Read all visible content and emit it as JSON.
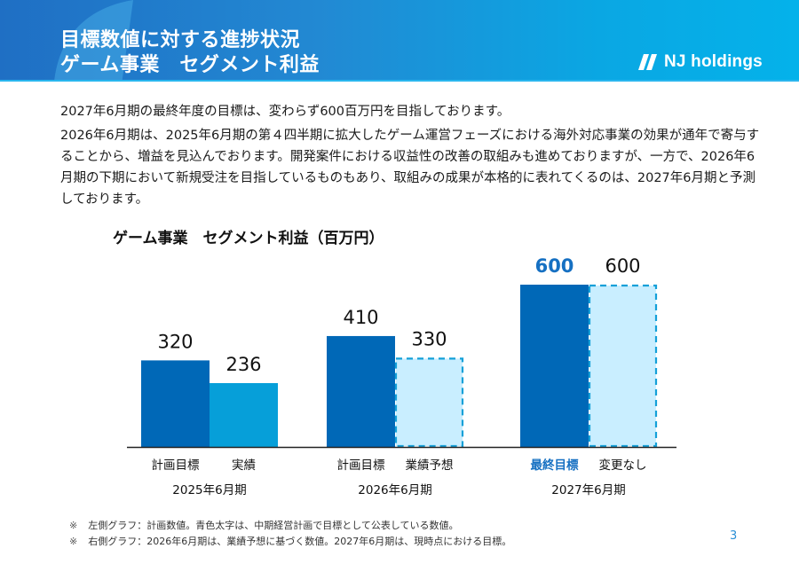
{
  "header": {
    "title_line1": "目標数値に対する進捗状況",
    "title_line2": "ゲーム事業　セグメント利益",
    "logo_text": "NJ holdings",
    "logo_icon": "double-slash-logo-mark"
  },
  "body": {
    "paragraph1": "2027年6月期の最終年度の目標は、変わらず600百万円を目指しております。",
    "paragraph2": "2026年6月期は、2025年6月期の第４四半期に拡大したゲーム運営フェーズにおける海外対応事業の効果が通年で寄与することから、増益を見込んでおります。開発案件における収益性の改善の取組みも進めておりますが、一方で、2026年6月期の下期において新規受注を目指しているものもあり、取組みの成果が本格的に表れてくるのは、2027年6月期と予測しております。"
  },
  "chart_data": {
    "type": "bar",
    "title": "ゲーム事業　セグメント利益（百万円）",
    "xlabel": "",
    "ylabel": "",
    "ylim": [
      0,
      600
    ],
    "grid": false,
    "legend": "none",
    "categories": [
      "2025年6月期",
      "2026年6月期",
      "2027年6月期"
    ],
    "series": [
      {
        "name": "left",
        "style": "solid-dark",
        "labels": [
          "計画目標",
          "計画目標",
          "最終目標"
        ],
        "values": [
          320,
          410,
          600
        ],
        "label_highlight": [
          false,
          false,
          true
        ]
      },
      {
        "name": "right",
        "style": [
          "solid-light",
          "dashed",
          "dashed"
        ],
        "labels": [
          "実績",
          "業績予想",
          "変更なし"
        ],
        "values": [
          236,
          330,
          600
        ],
        "label_highlight": [
          false,
          false,
          false
        ]
      }
    ],
    "colors": {
      "plan": "#0068b7",
      "actual": "#069fd9",
      "forecast_fill": "#c9eeff",
      "forecast_stroke": "#14a0d8",
      "highlight_text": "#1670c2",
      "axis": "#222222"
    }
  },
  "footnotes": [
    {
      "mark": "※",
      "text": "左側グラフ：計画数値。青色太字は、中期経営計画で目標として公表している数値。"
    },
    {
      "mark": "※",
      "text": "右側グラフ：2026年6月期は、業績予想に基づく数値。2027年6月期は、現時点における目標。"
    }
  ],
  "page_number": "3"
}
